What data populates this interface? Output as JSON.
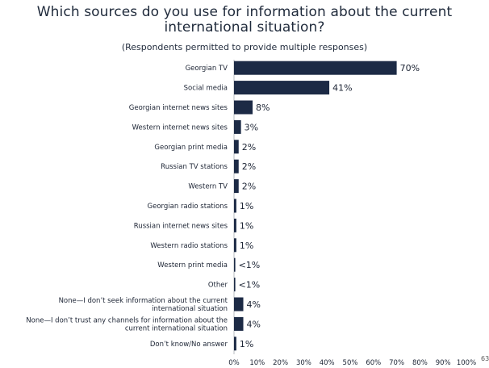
{
  "chart_data": {
    "type": "bar",
    "orientation": "horizontal",
    "title": "Which sources do you use for information about the current international situation?",
    "subtitle": "(Respondents permitted to provide multiple responses)",
    "categories": [
      [
        "Georgian TV"
      ],
      [
        "Social media"
      ],
      [
        "Georgian internet news sites"
      ],
      [
        "Western internet news sites"
      ],
      [
        "Georgian print media"
      ],
      [
        "Russian TV stations"
      ],
      [
        "Western TV"
      ],
      [
        "Georgian radio stations"
      ],
      [
        "Russian internet news sites"
      ],
      [
        "Western radio stations"
      ],
      [
        "Western print media"
      ],
      [
        "Other"
      ],
      [
        "None—I don’t seek information about the current",
        "international situation"
      ],
      [
        "None—I don’t trust any channels for information about the",
        "current international situation"
      ],
      [
        "Don’t know/No answer"
      ]
    ],
    "values": [
      70,
      41,
      8,
      3,
      2,
      2,
      2,
      1,
      1,
      1,
      0.4,
      0.4,
      4,
      4,
      1
    ],
    "value_labels": [
      "70%",
      "41%",
      "8%",
      "3%",
      "2%",
      "2%",
      "2%",
      "1%",
      "1%",
      "1%",
      "<1%",
      "<1%",
      "4%",
      "4%",
      "1%"
    ],
    "x_ticks": [
      "0%",
      "10%",
      "20%",
      "30%",
      "40%",
      "50%",
      "60%",
      "70%",
      "80%",
      "90%",
      "100%"
    ],
    "xlim": [
      0,
      100
    ],
    "bar_color": "#1c2a45",
    "grid": false,
    "legend": "none"
  },
  "page_number": "63"
}
